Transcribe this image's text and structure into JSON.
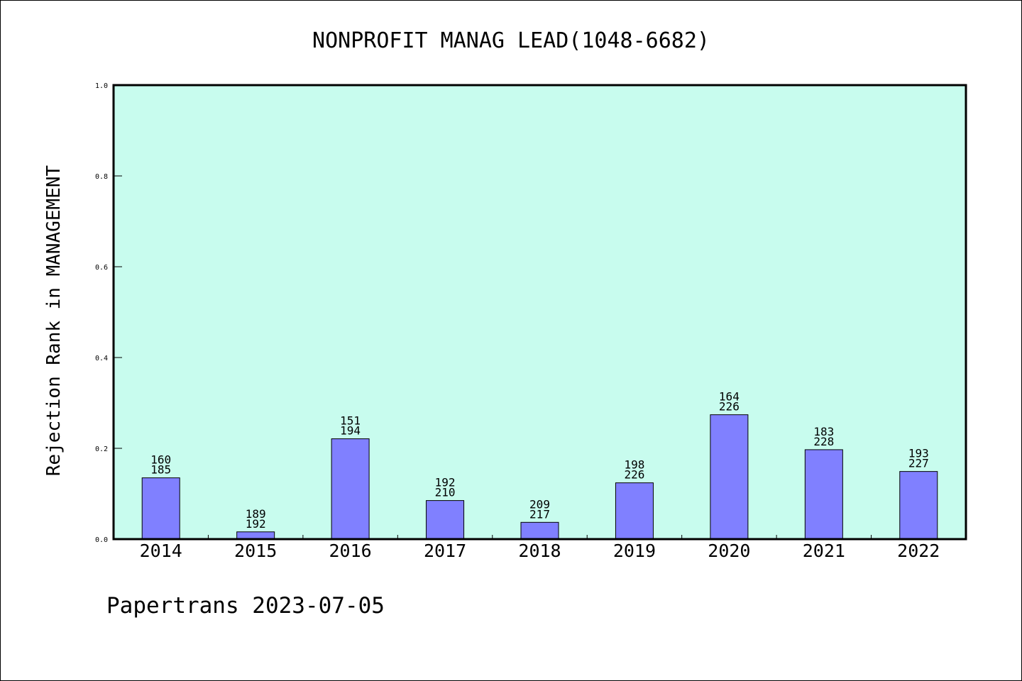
{
  "chart_data": {
    "type": "bar",
    "title": "NONPROFIT MANAG LEAD(1048-6682)",
    "xlabel": "",
    "ylabel": "Rejection Rank in MANAGEMENT",
    "ylim": [
      0,
      1.0
    ],
    "yticks": [
      "0.0",
      "0.2",
      "0.4",
      "0.6",
      "0.8",
      "1.0"
    ],
    "categories": [
      "2014",
      "2015",
      "2016",
      "2017",
      "2018",
      "2019",
      "2020",
      "2021",
      "2022"
    ],
    "values": [
      0.135,
      0.016,
      0.221,
      0.085,
      0.037,
      0.124,
      0.274,
      0.197,
      0.149
    ],
    "bar_labels": [
      [
        "160",
        "185"
      ],
      [
        "189",
        "192"
      ],
      [
        "151",
        "194"
      ],
      [
        "192",
        "210"
      ],
      [
        "209",
        "217"
      ],
      [
        "198",
        "226"
      ],
      [
        "164",
        "226"
      ],
      [
        "183",
        "228"
      ],
      [
        "193",
        "227"
      ]
    ],
    "grid": false,
    "legend": "none",
    "colors": {
      "plot_background": "#c8fcee",
      "bar_fill": "#8080ff",
      "bar_stroke": "#000000",
      "frame": "#000000"
    }
  },
  "footer": {
    "text": "Papertrans 2023-07-05"
  }
}
